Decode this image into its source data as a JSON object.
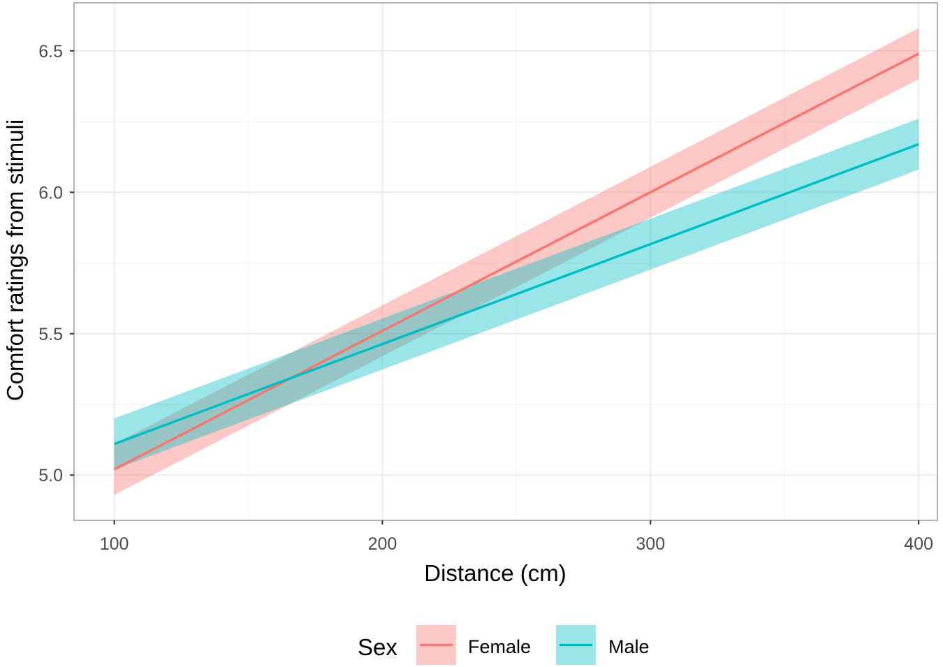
{
  "chart_data": {
    "type": "line",
    "xlabel": "Distance (cm)",
    "ylabel": "Comfort ratings from stimuli",
    "xlim": [
      85,
      407
    ],
    "ylim": [
      4.84,
      6.67
    ],
    "x_ticks": [
      100,
      200,
      300,
      400
    ],
    "x_tick_labels": [
      "100",
      "200",
      "300",
      "400"
    ],
    "y_ticks": [
      5.0,
      5.5,
      6.0,
      6.5
    ],
    "y_tick_labels": [
      "5.0",
      "5.5",
      "6.0",
      "6.5"
    ],
    "grid": true,
    "legend": {
      "title": "Sex",
      "position": "bottom"
    },
    "series": [
      {
        "name": "Female",
        "color": "#F8766D",
        "x": [
          100,
          400
        ],
        "y": [
          5.02,
          6.49
        ],
        "ci_lower": [
          4.93,
          6.4
        ],
        "ci_upper": [
          5.11,
          6.58
        ]
      },
      {
        "name": "Male",
        "color": "#00BFC4",
        "x": [
          100,
          400
        ],
        "y": [
          5.11,
          6.17
        ],
        "ci_lower": [
          5.02,
          6.08
        ],
        "ci_upper": [
          5.2,
          6.26
        ]
      }
    ]
  }
}
